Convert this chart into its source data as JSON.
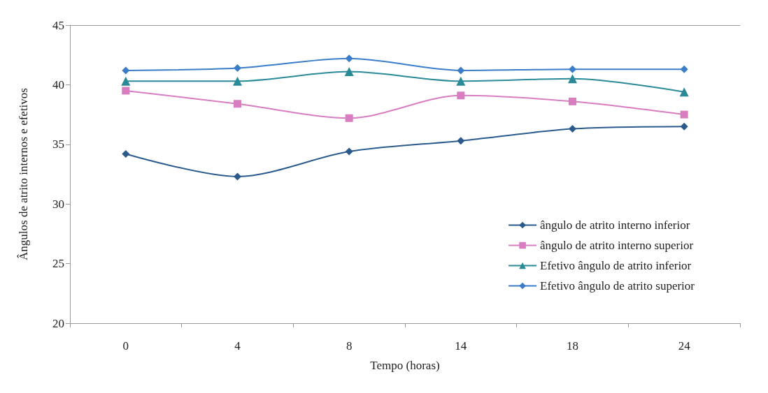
{
  "chart_data": {
    "type": "line",
    "xlabel": "Tempo (horas)",
    "ylabel": "Ângulos de atrito internos e efetivos",
    "categories": [
      "0",
      "4",
      "8",
      "14",
      "18",
      "24"
    ],
    "ylim": [
      20,
      45
    ],
    "yticks": [
      20,
      25,
      30,
      35,
      40,
      45
    ],
    "grid": false,
    "legend": "bottom right",
    "series": [
      {
        "name": "ângulo de atrito interno inferior",
        "color": "#2b5b8c",
        "marker": "diamond",
        "values": [
          34.2,
          32.3,
          34.4,
          35.3,
          36.3,
          36.5
        ]
      },
      {
        "name": "ângulo de atrito interno superior",
        "color": "#d87dbf",
        "marker": "square",
        "values": [
          39.5,
          38.4,
          37.2,
          39.1,
          38.6,
          37.5
        ]
      },
      {
        "name": "Efetivo ângulo de atrito inferior",
        "color": "#2a8a98",
        "marker": "triangle",
        "values": [
          40.3,
          40.3,
          41.1,
          40.3,
          40.5,
          39.4
        ]
      },
      {
        "name": "Efetivo ângulo de atrito superior",
        "color": "#3b7dc9",
        "marker": "diamond",
        "values": [
          41.2,
          41.4,
          42.2,
          41.2,
          41.3,
          41.3
        ]
      }
    ]
  }
}
